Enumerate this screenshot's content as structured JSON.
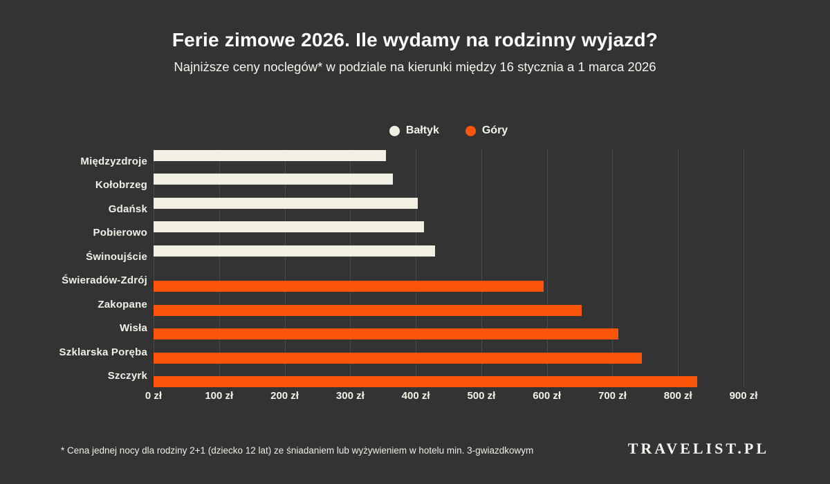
{
  "header": {
    "title": "Ferie zimowe 2026. Ile wydamy na rodzinny wyjazd?",
    "subtitle": "Najniższe ceny noclegów* w podziale na kierunki między 16 stycznia a 1 marca 2026"
  },
  "legend": {
    "items": [
      {
        "key": "baltyk",
        "label": "Bałtyk",
        "color": "#F2F0E3"
      },
      {
        "key": "gory",
        "label": "Góry",
        "color": "#FA550A"
      }
    ]
  },
  "chart_data": {
    "type": "bar",
    "orientation": "horizontal",
    "title": "Ferie zimowe 2026. Ile wydamy na rodzinny wyjazd?",
    "subtitle": "Najniższe ceny noclegów* w podziale na kierunki między 16 stycznia a 1 marca 2026",
    "unit": "zł",
    "categories": [
      "Międzyzdroje",
      "Kołobrzeg",
      "Gdańsk",
      "Pobierowo",
      "Świnoujście",
      "Świeradów-Zdrój",
      "Zakopane",
      "Wisła",
      "Szklarska Poręba",
      "Szczyrk"
    ],
    "series": [
      {
        "key": "baltyk",
        "name": "Bałtyk",
        "color": "#F2F0E3",
        "values": [
          355,
          365,
          403,
          413,
          429,
          0,
          0,
          0,
          0,
          0
        ]
      },
      {
        "key": "gory",
        "name": "Góry",
        "color": "#FA550A",
        "values": [
          0,
          0,
          0,
          0,
          0,
          595,
          653,
          709,
          745,
          829
        ]
      }
    ],
    "xlim": [
      0,
      900
    ],
    "ticks": [
      {
        "value": 0,
        "label": "0 zł"
      },
      {
        "value": 100,
        "label": "100 zł"
      },
      {
        "value": 200,
        "label": "200 zł"
      },
      {
        "value": 300,
        "label": "300 zł"
      },
      {
        "value": 400,
        "label": "400 zł"
      },
      {
        "value": 500,
        "label": "500 zł"
      },
      {
        "value": 600,
        "label": "600 zł"
      },
      {
        "value": 700,
        "label": "700 zł"
      },
      {
        "value": 800,
        "label": "800 zł"
      },
      {
        "value": 900,
        "label": "900 zł"
      }
    ],
    "grid": true,
    "legend_position": "top-center"
  },
  "footer": {
    "note": "* Cena jednej nocy dla rodziny 2+1 (dziecko 12 lat) ze śniadaniem lub wyżywieniem w hotelu min. 3-gwiazdkowym",
    "logo": "TRAVELIST.PL"
  },
  "theme": {
    "background": "#333333",
    "gridline": "#4A4A48",
    "title_color": "#FDFDFB",
    "text_color": "#F2F0E5"
  }
}
